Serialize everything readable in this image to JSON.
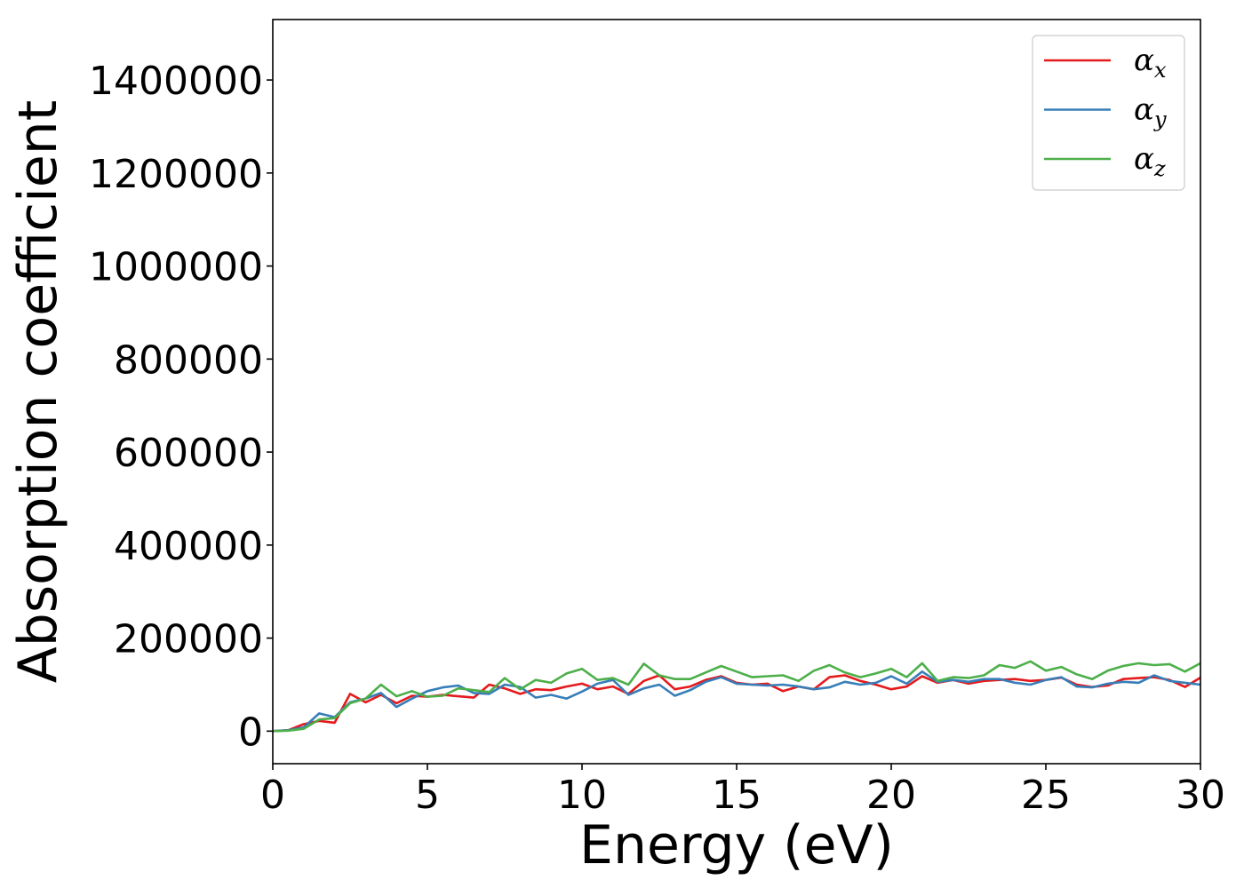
{
  "chart_data": {
    "type": "line",
    "title": "",
    "xlabel": "Energy (eV)",
    "ylabel": "Absorption coefficient",
    "xlim": [
      0,
      30
    ],
    "ylim": [
      -70000,
      1530000
    ],
    "xticks": [
      0,
      5,
      10,
      15,
      20,
      25,
      30
    ],
    "yticks": [
      0,
      200000,
      400000,
      600000,
      800000,
      1000000,
      1200000,
      1400000
    ],
    "grid": false,
    "legend_position": "top-right",
    "x": [
      0,
      0.5,
      1,
      1.5,
      2,
      2.5,
      3,
      3.5,
      4,
      4.5,
      5,
      5.5,
      6,
      6.5,
      7,
      7.5,
      8,
      8.5,
      9,
      9.5,
      10,
      10.5,
      11,
      11.5,
      12,
      12.5,
      13,
      13.5,
      14,
      14.5,
      15,
      15.5,
      16,
      16.5,
      17,
      17.5,
      18,
      18.5,
      19,
      19.5,
      20,
      20.5,
      21,
      21.5,
      22,
      22.5,
      23,
      23.5,
      24,
      24.5,
      25,
      25.5,
      26,
      26.5,
      27,
      27.5,
      28,
      28.5,
      29,
      29.5,
      30
    ],
    "series": [
      {
        "name": "αx",
        "symbol": "α",
        "subscript": "x",
        "color": "#e41a1c",
        "values": [
          0,
          2000,
          15000,
          22000,
          18000,
          80000,
          62000,
          78000,
          60000,
          76000,
          74000,
          78000,
          75000,
          72000,
          100000,
          92000,
          80000,
          90000,
          88000,
          96000,
          102000,
          90000,
          96000,
          80000,
          108000,
          120000,
          90000,
          96000,
          110000,
          118000,
          104000,
          100000,
          102000,
          86000,
          96000,
          90000,
          116000,
          120000,
          108000,
          100000,
          90000,
          96000,
          118000,
          104000,
          110000,
          102000,
          108000,
          110000,
          112000,
          108000,
          110000,
          115000,
          100000,
          95000,
          98000,
          112000,
          114000,
          116000,
          110000,
          95000,
          115000
        ]
      },
      {
        "name": "αy",
        "symbol": "α",
        "subscript": "y",
        "color": "#377eb8",
        "values": [
          0,
          2000,
          8000,
          38000,
          30000,
          62000,
          70000,
          82000,
          52000,
          70000,
          86000,
          94000,
          98000,
          82000,
          80000,
          100000,
          95000,
          72000,
          78000,
          70000,
          85000,
          102000,
          110000,
          78000,
          92000,
          100000,
          76000,
          88000,
          106000,
          116000,
          102000,
          100000,
          98000,
          100000,
          96000,
          90000,
          94000,
          106000,
          100000,
          104000,
          118000,
          102000,
          128000,
          106000,
          110000,
          106000,
          112000,
          112000,
          104000,
          100000,
          110000,
          116000,
          96000,
          94000,
          102000,
          106000,
          104000,
          120000,
          108000,
          104000,
          100000
        ]
      },
      {
        "name": "αz",
        "symbol": "α",
        "subscript": "z",
        "color": "#4daf4a",
        "values": [
          0,
          1000,
          5000,
          25000,
          28000,
          60000,
          70000,
          100000,
          75000,
          86000,
          74000,
          76000,
          92000,
          88000,
          84000,
          114000,
          90000,
          110000,
          104000,
          124000,
          134000,
          110000,
          114000,
          100000,
          145000,
          120000,
          112000,
          112000,
          126000,
          140000,
          128000,
          116000,
          118000,
          120000,
          108000,
          130000,
          142000,
          126000,
          116000,
          124000,
          134000,
          116000,
          146000,
          108000,
          116000,
          114000,
          120000,
          142000,
          136000,
          150000,
          130000,
          138000,
          122000,
          112000,
          130000,
          140000,
          146000,
          142000,
          144000,
          128000,
          146000
        ]
      }
    ]
  }
}
